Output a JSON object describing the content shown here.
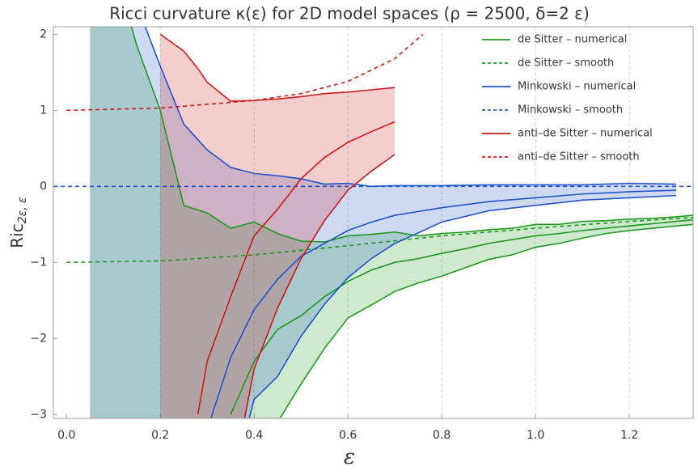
{
  "chart_data": {
    "type": "line",
    "title": "Ricci curvature κ(ε) for 2D model spaces (ρ = 2500,  δ=2 ε)",
    "xlabel": "ε",
    "ylabel": {
      "main": "Ric",
      "sub": "2ε, ε"
    },
    "xlim": [
      -0.028,
      1.336
    ],
    "ylim": [
      -3.05,
      2.1
    ],
    "xticks": [
      {
        "value": 0,
        "label": "0.0"
      },
      0.2,
      0.4,
      0.6,
      0.8,
      {
        "value": 1,
        "label": "1.0"
      },
      1.2
    ],
    "yticks": [
      {
        "value": -3,
        "label": "−3"
      },
      {
        "value": -2,
        "label": "−2"
      },
      {
        "value": -1,
        "label": "−1"
      },
      0,
      1,
      2
    ],
    "grid": "x",
    "legend": "top-right",
    "series": [
      {
        "name": "de Sitter  – numerical",
        "color": "#1f9a1f",
        "style": "solid",
        "x": [
          0.05,
          0.15,
          0.2,
          0.25,
          0.3,
          0.35,
          0.4,
          0.45,
          0.5,
          0.55,
          0.6,
          0.65,
          0.7,
          0.75,
          0.8,
          0.85,
          0.9,
          0.95,
          1.0,
          1.05,
          1.1,
          1.15,
          1.2,
          1.25,
          1.3,
          1.336
        ],
        "upper": [
          4,
          1.85,
          1.0,
          -0.25,
          -0.35,
          -0.55,
          -0.47,
          -0.62,
          -0.72,
          -0.73,
          -0.65,
          -0.63,
          -0.6,
          -0.65,
          -0.62,
          -0.6,
          -0.57,
          -0.55,
          -0.5,
          -0.5,
          -0.46,
          -0.45,
          -0.43,
          -0.42,
          -0.4,
          -0.38
        ],
        "values": [
          null,
          null,
          null,
          null,
          null,
          -3.0,
          -2.3,
          -1.88,
          -1.7,
          -1.45,
          -1.25,
          -1.1,
          -1.0,
          -0.95,
          -0.88,
          -0.82,
          -0.75,
          -0.7,
          -0.65,
          -0.62,
          -0.58,
          -0.55,
          -0.52,
          -0.49,
          -0.46,
          -0.44
        ],
        "lower": [
          -4,
          -4,
          -4,
          -4,
          -4,
          -4,
          -4,
          -3.1,
          -2.6,
          -2.13,
          -1.73,
          -1.56,
          -1.38,
          -1.27,
          -1.18,
          -1.07,
          -0.96,
          -0.9,
          -0.8,
          -0.75,
          -0.68,
          -0.62,
          -0.58,
          -0.55,
          -0.52,
          -0.5
        ]
      },
      {
        "name": "de Sitter  – smooth",
        "color": "#1f9a1f",
        "style": "dashed",
        "x": [
          0,
          0.2,
          0.4,
          0.6,
          0.8,
          1.0,
          1.2,
          1.336
        ],
        "values": [
          -1,
          -0.98,
          -0.9,
          -0.78,
          -0.65,
          -0.55,
          -0.46,
          -0.41
        ]
      },
      {
        "name": "Minkowski  – numerical",
        "color": "#2255cc",
        "style": "solid",
        "x": [
          0.05,
          0.2,
          0.25,
          0.3,
          0.35,
          0.4,
          0.45,
          0.5,
          0.55,
          0.6,
          0.65,
          0.7,
          0.8,
          0.9,
          1.0,
          1.1,
          1.2,
          1.3
        ],
        "upper": [
          4,
          1.58,
          0.82,
          0.48,
          0.25,
          0.17,
          0.14,
          0.1,
          0.03,
          0.04,
          0.0,
          0.01,
          0.01,
          0.02,
          0.02,
          0.02,
          0.04,
          0.03
        ],
        "values": [
          null,
          null,
          null,
          -3.2,
          -2.25,
          -1.62,
          -1.22,
          -0.92,
          -0.75,
          -0.58,
          -0.47,
          -0.38,
          -0.28,
          -0.2,
          -0.15,
          -0.1,
          -0.07,
          -0.05
        ],
        "lower": [
          -4,
          -4,
          -4,
          -4,
          -4,
          -2.8,
          -2.5,
          -1.97,
          -1.55,
          -1.2,
          -0.95,
          -0.75,
          -0.47,
          -0.32,
          -0.25,
          -0.18,
          -0.15,
          -0.12
        ]
      },
      {
        "name": "Minkowski  – smooth",
        "color": "#2255cc",
        "style": "dashed",
        "x": [
          -0.028,
          1.336
        ],
        "values": [
          0,
          0
        ]
      },
      {
        "name": "anti–de Sitter  – numerical",
        "color": "#cc1a1a",
        "style": "solid",
        "x": [
          0.2,
          0.25,
          0.28,
          0.3,
          0.35,
          0.4,
          0.45,
          0.5,
          0.55,
          0.6,
          0.65,
          0.7
        ],
        "upper": [
          2.0,
          1.78,
          1.55,
          1.37,
          1.12,
          1.13,
          1.15,
          1.18,
          1.22,
          1.24,
          1.27,
          1.3
        ],
        "values": [
          null,
          null,
          -3.0,
          -2.3,
          -1.45,
          -0.65,
          -0.3,
          0.1,
          0.38,
          0.58,
          0.72,
          0.85
        ],
        "lower": [
          -4,
          -4,
          -4,
          -4,
          -4,
          -2.4,
          -1.6,
          -0.95,
          -0.45,
          -0.05,
          0.2,
          0.42
        ]
      },
      {
        "name": "anti–de Sitter  – smooth",
        "color": "#cc1a1a",
        "style": "dashed",
        "x": [
          0,
          0.2,
          0.4,
          0.5,
          0.6,
          0.7,
          0.76
        ],
        "values": [
          1.0,
          1.03,
          1.13,
          1.22,
          1.38,
          1.68,
          2.0
        ]
      }
    ]
  }
}
